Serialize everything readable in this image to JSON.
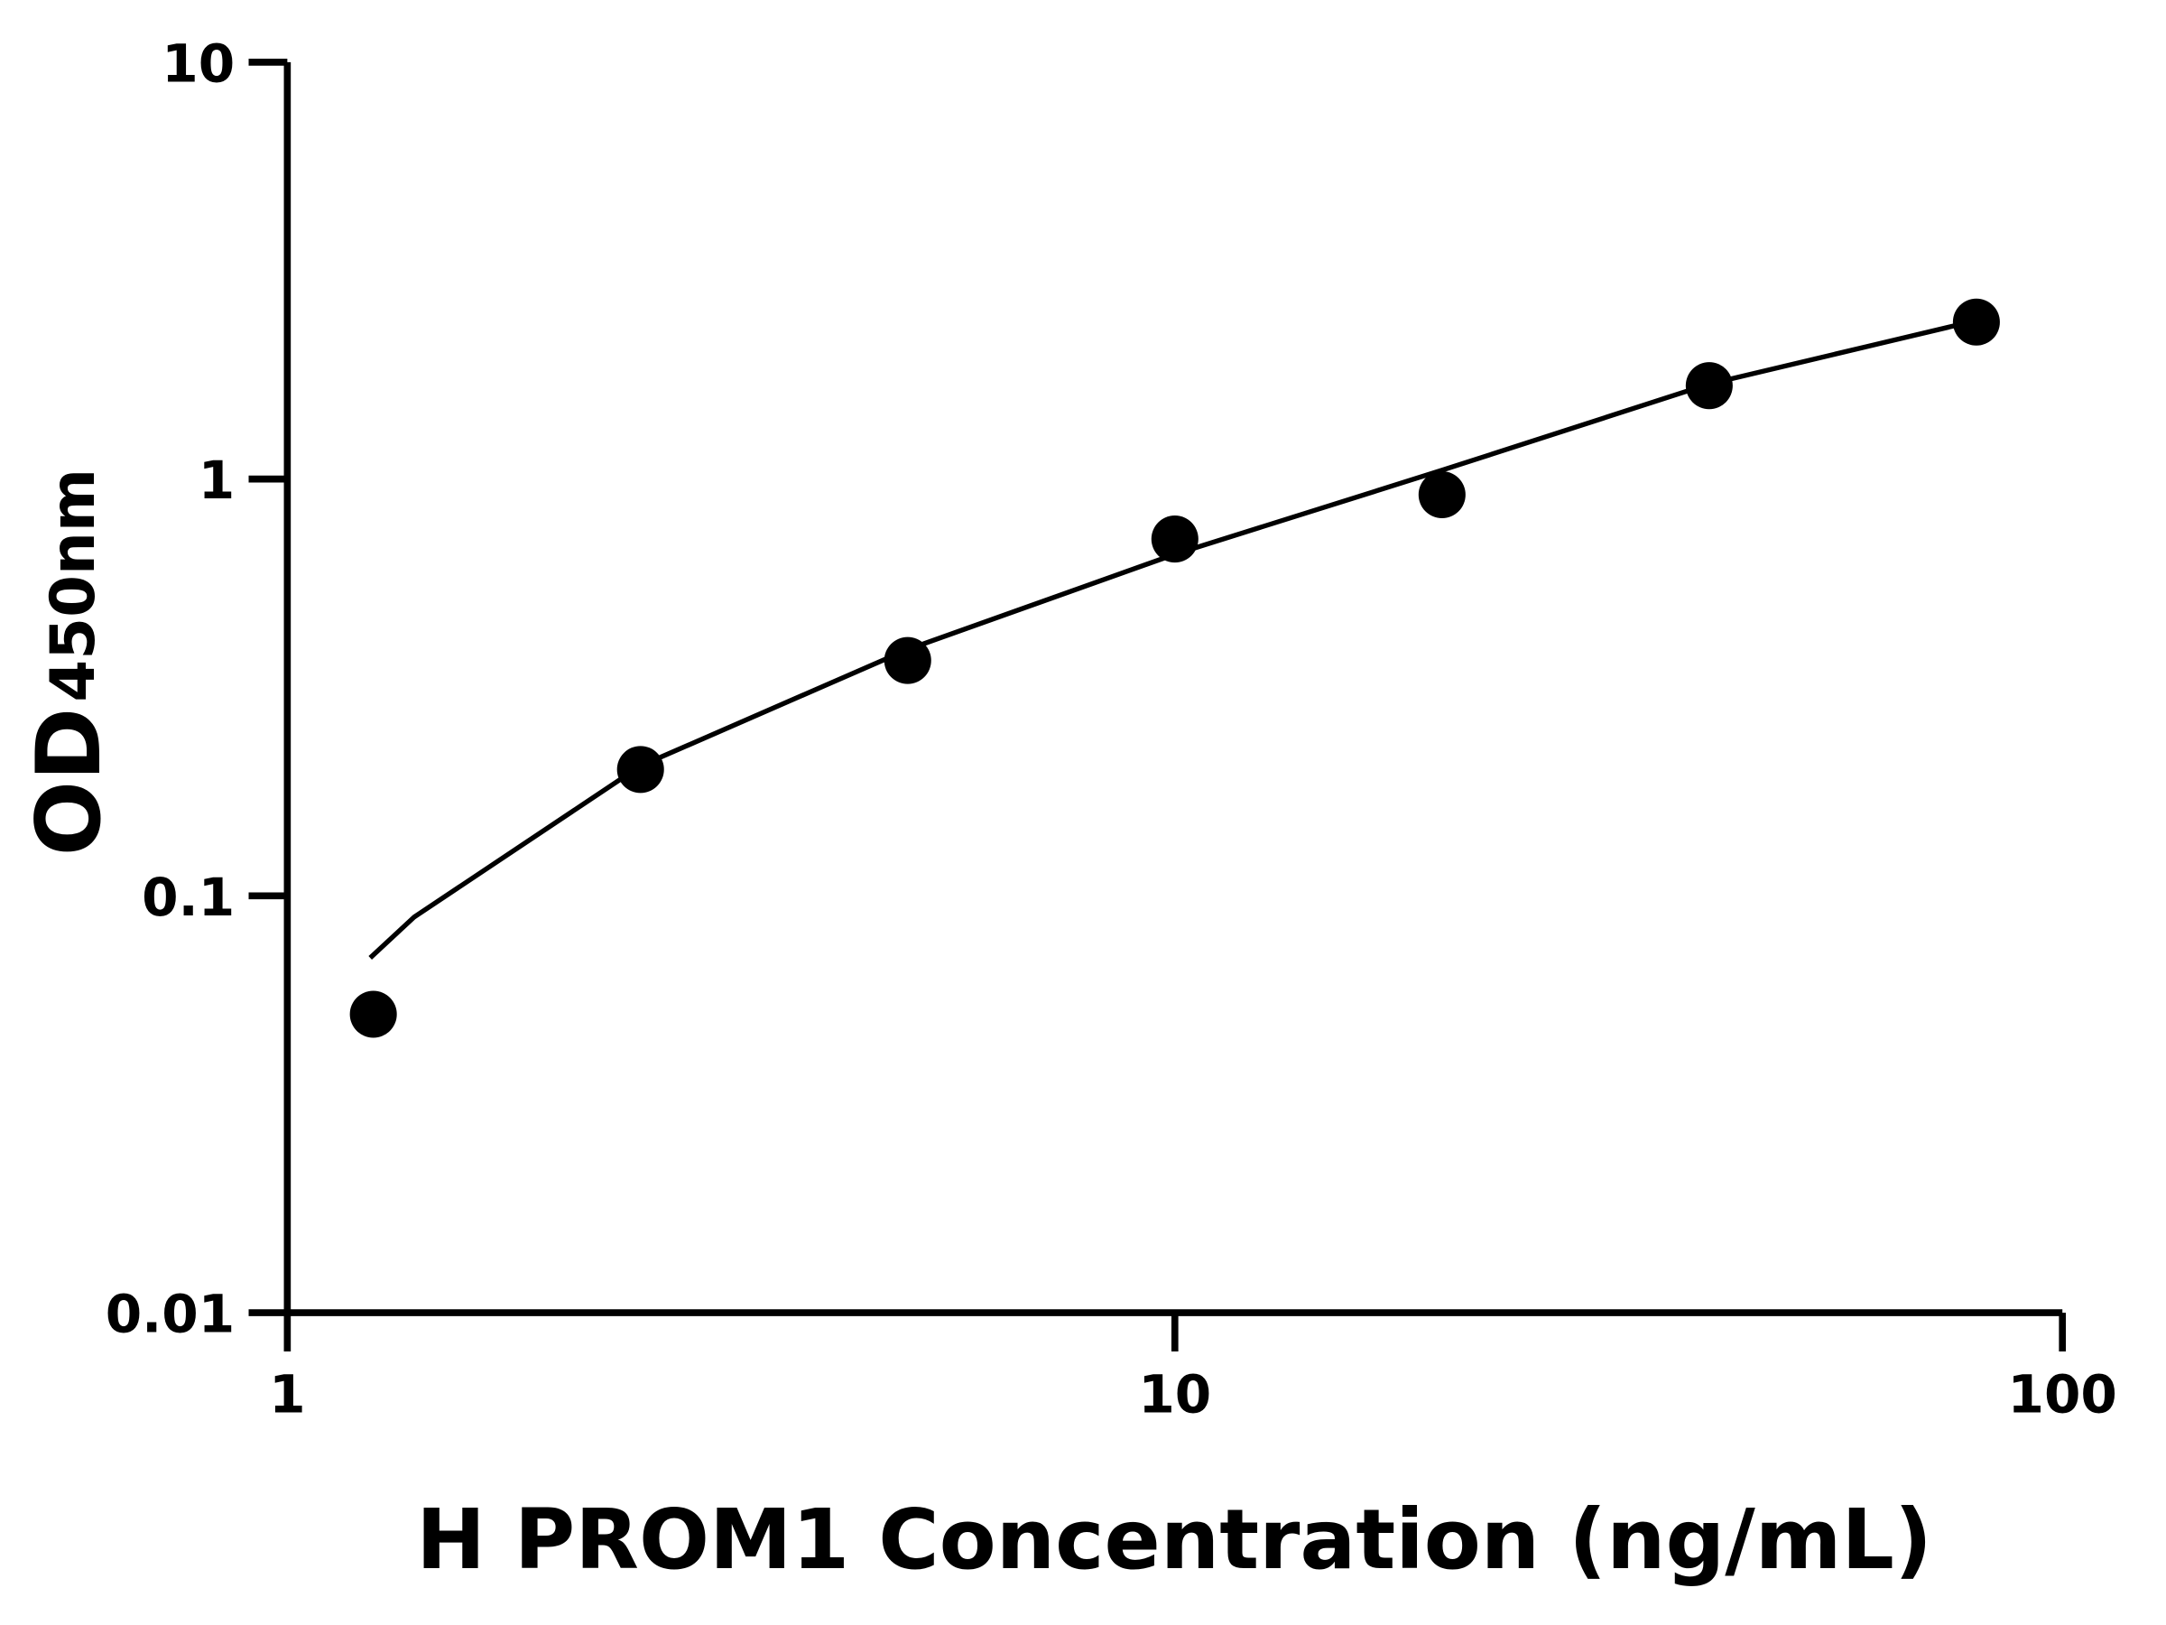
{
  "chart_data": {
    "type": "scatter",
    "x_label": "H PROM1 Concentration (ng/mL)",
    "y_label": "OD",
    "y_label_subscript": "450nm",
    "x": [
      1.25,
      2.5,
      5,
      10,
      20,
      40,
      80
    ],
    "values": [
      0.052,
      0.201,
      0.367,
      0.718,
      0.917,
      1.675,
      2.38
    ],
    "color": "#000000",
    "fit": {
      "x": [
        1.24,
        1.39,
        2.5,
        5,
        10,
        20,
        40,
        80
      ],
      "values": [
        0.071,
        0.089,
        0.205,
        0.39,
        0.66,
        1.05,
        1.69,
        2.4
      ]
    },
    "x_log": true,
    "y_log": true,
    "xlim": [
      1,
      100
    ],
    "xticks": [
      1,
      10,
      100
    ],
    "ylim": [
      0.01,
      10
    ],
    "yticks": [
      0.01,
      0.1,
      1,
      10
    ],
    "grid": false
  }
}
